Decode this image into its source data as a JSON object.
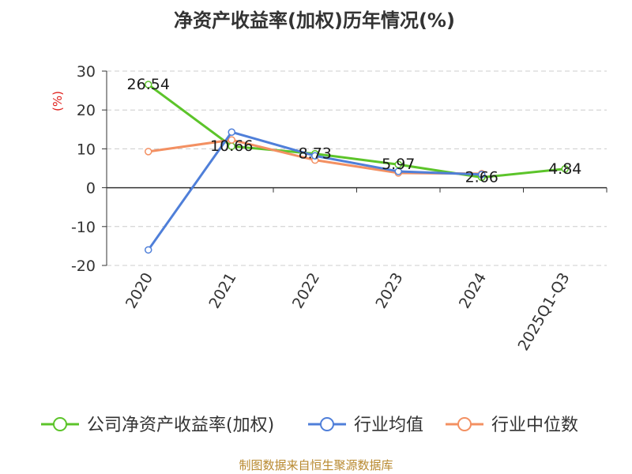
{
  "chart_data": {
    "type": "line",
    "title": "净资产收益率(加权)历年情况(%)",
    "ylabel": "(%)",
    "ylim": [
      -20,
      30
    ],
    "yticks": [
      30,
      20,
      10,
      0,
      -10,
      -20
    ],
    "grid": true,
    "legend_position": "bottom",
    "categories": [
      "2020",
      "2021",
      "2022",
      "2023",
      "2024",
      "2025Q1-Q3"
    ],
    "series": [
      {
        "name": "公司净资产收益率(加权)",
        "color": "#5cc42a",
        "values": [
          26.54,
          10.66,
          8.73,
          5.97,
          2.66,
          4.84
        ],
        "labels": [
          "26.54",
          "10.66",
          "8.73",
          "5.97",
          "2.66",
          "4.84"
        ]
      },
      {
        "name": "行业均值",
        "color": "#4f7fd9",
        "values": [
          -16.0,
          14.3,
          8.2,
          4.2,
          3.4,
          null
        ]
      },
      {
        "name": "行业中位数",
        "color": "#f39062",
        "values": [
          9.3,
          12.3,
          7.1,
          3.8,
          3.6,
          null
        ]
      }
    ]
  },
  "source": "制图数据来自恒生聚源数据库"
}
